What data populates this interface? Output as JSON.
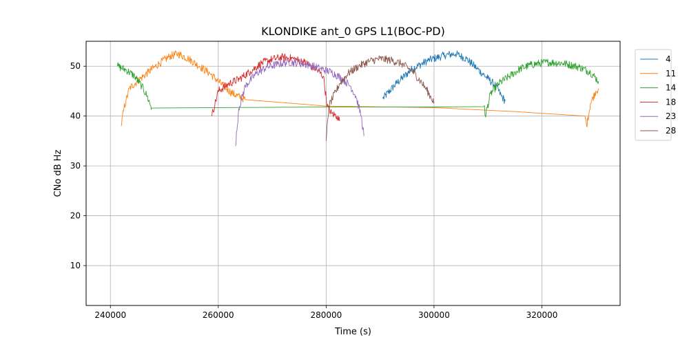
{
  "chart_data": {
    "type": "line",
    "title": "KLONDIKE ant_0 GPS L1(BOC-PD)",
    "xlabel": "Time (s)",
    "ylabel": "CNo dB Hz",
    "xlim": [
      235500,
      334500
    ],
    "ylim": [
      2,
      55
    ],
    "xticks": [
      240000,
      260000,
      280000,
      300000,
      320000
    ],
    "yticks": [
      10,
      20,
      30,
      40,
      50
    ],
    "grid": true,
    "legend_position": "outside-right",
    "series": [
      {
        "name": "4",
        "color": "#1f77b4",
        "points": [
          [
            290500,
            43.5
          ],
          [
            293000,
            46.5
          ],
          [
            296000,
            49.5
          ],
          [
            299000,
            51.2
          ],
          [
            302000,
            52.2
          ],
          [
            304000,
            52.5
          ],
          [
            306000,
            51.5
          ],
          [
            308000,
            49.5
          ],
          [
            310000,
            47.5
          ],
          [
            311500,
            46.0
          ],
          [
            312500,
            44.0
          ],
          [
            313200,
            43.0
          ]
        ]
      },
      {
        "name": "11",
        "color": "#ff7f0e",
        "points": [
          [
            242000,
            38.0
          ],
          [
            242500,
            41.5
          ],
          [
            243500,
            45.5
          ],
          [
            245000,
            47.0
          ],
          [
            247000,
            48.8
          ],
          [
            249000,
            50.5
          ],
          [
            251000,
            52.0
          ],
          [
            252500,
            52.5
          ],
          [
            254500,
            51.5
          ],
          [
            256500,
            50.0
          ],
          [
            258500,
            48.5
          ],
          [
            260000,
            47.0
          ],
          [
            261500,
            45.5
          ],
          [
            262700,
            44.5
          ],
          [
            265000,
            43.3
          ],
          [
            280000,
            42.0
          ],
          [
            300000,
            41.7
          ],
          [
            315000,
            40.9
          ],
          [
            328000,
            40.0
          ],
          [
            328300,
            38.0
          ],
          [
            329000,
            42.5
          ],
          [
            330000,
            45.0
          ],
          [
            330500,
            45.5
          ]
        ]
      },
      {
        "name": "14",
        "color": "#2ca02c",
        "points": [
          [
            241300,
            50.0
          ],
          [
            243000,
            49.2
          ],
          [
            244500,
            48.0
          ],
          [
            245800,
            46.0
          ],
          [
            246800,
            44.0
          ],
          [
            247500,
            42.0
          ],
          [
            247600,
            41.6
          ],
          [
            260000,
            41.7
          ],
          [
            280000,
            41.8
          ],
          [
            300000,
            41.8
          ],
          [
            309300,
            41.9
          ],
          [
            309500,
            40.0
          ],
          [
            310500,
            44.5
          ],
          [
            312000,
            46.5
          ],
          [
            314000,
            48.0
          ],
          [
            316000,
            49.5
          ],
          [
            318000,
            50.3
          ],
          [
            321000,
            50.8
          ],
          [
            324000,
            50.6
          ],
          [
            327000,
            49.8
          ],
          [
            329000,
            48.8
          ],
          [
            330500,
            47.0
          ]
        ]
      },
      {
        "name": "18",
        "color": "#d62728",
        "points": [
          [
            258800,
            40.0
          ],
          [
            260000,
            45.0
          ],
          [
            262000,
            46.5
          ],
          [
            264000,
            47.5
          ],
          [
            266000,
            49.0
          ],
          [
            268000,
            50.6
          ],
          [
            270000,
            51.4
          ],
          [
            272000,
            51.8
          ],
          [
            274000,
            51.5
          ],
          [
            276000,
            50.8
          ],
          [
            278000,
            49.5
          ],
          [
            279500,
            48.0
          ],
          [
            280200,
            42.0
          ],
          [
            281000,
            40.5
          ],
          [
            282000,
            40.0
          ],
          [
            282500,
            39.0
          ]
        ]
      },
      {
        "name": "23",
        "color": "#9467bd",
        "points": [
          [
            263200,
            34.0
          ],
          [
            263800,
            41.5
          ],
          [
            265000,
            46.0
          ],
          [
            267000,
            48.5
          ],
          [
            269000,
            49.8
          ],
          [
            271000,
            50.4
          ],
          [
            273000,
            50.8
          ],
          [
            275000,
            50.6
          ],
          [
            277000,
            50.2
          ],
          [
            279000,
            49.5
          ],
          [
            281000,
            48.8
          ],
          [
            283000,
            47.5
          ],
          [
            284500,
            46.0
          ],
          [
            285500,
            44.0
          ],
          [
            286500,
            40.0
          ],
          [
            287000,
            36.0
          ]
        ]
      },
      {
        "name": "28",
        "color": "#8c564b",
        "points": [
          [
            280000,
            35.0
          ],
          [
            280500,
            42.0
          ],
          [
            282500,
            46.5
          ],
          [
            284000,
            48.5
          ],
          [
            286000,
            50.0
          ],
          [
            288000,
            51.0
          ],
          [
            290000,
            51.5
          ],
          [
            292000,
            51.2
          ],
          [
            294000,
            50.5
          ],
          [
            296000,
            49.0
          ],
          [
            297500,
            47.0
          ],
          [
            298500,
            45.5
          ],
          [
            299300,
            44.0
          ],
          [
            300000,
            42.8
          ]
        ]
      }
    ]
  }
}
